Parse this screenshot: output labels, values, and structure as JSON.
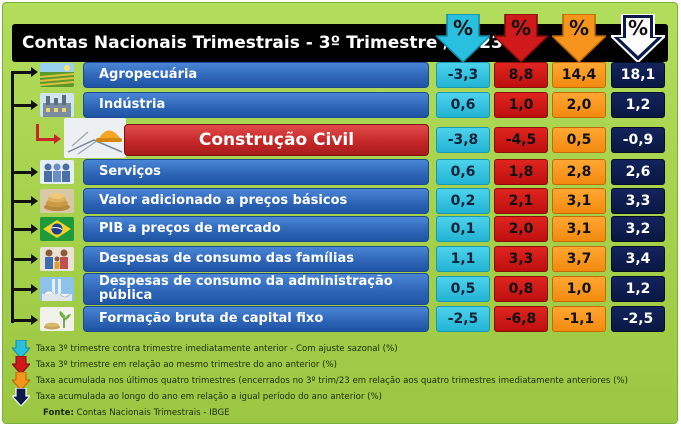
{
  "title": "Contas Nacionais Trimestrais - 3º Trimestre / 2023",
  "header_symbol": "%",
  "colors": {
    "cyan": "#22b4d4",
    "red": "#bd0f0f",
    "orange": "#f28a0f",
    "navy": "#091742",
    "label_blue": "#2f66b8",
    "highlight_red": "#c62828",
    "background_green": "#a4d04a"
  },
  "headers": [
    {
      "color": "cyan",
      "icon": "cyan-percent-arrow-icon"
    },
    {
      "color": "red",
      "icon": "red-percent-arrow-icon"
    },
    {
      "color": "orange",
      "icon": "orange-percent-arrow-icon"
    },
    {
      "color": "navy",
      "icon": "navy-percent-arrow-icon"
    }
  ],
  "rows": [
    {
      "label": "Agropecuária",
      "icon": "agriculture-field-icon",
      "values": [
        "-3,3",
        "8,8",
        "14,4",
        "18,1"
      ]
    },
    {
      "label": "Indústria",
      "icon": "factory-icon",
      "values": [
        "0,6",
        "1,0",
        "2,0",
        "1,2"
      ]
    },
    {
      "label": "Construção Civil",
      "icon": "construction-helmet-icon",
      "highlight": true,
      "values": [
        "-3,8",
        "-4,5",
        "0,5",
        "-0,9"
      ]
    },
    {
      "label": "Serviços",
      "icon": "services-people-icon",
      "values": [
        "0,6",
        "1,8",
        "2,8",
        "2,6"
      ]
    },
    {
      "label": "Valor adicionado a preços básicos",
      "icon": "coins-icon",
      "values": [
        "0,2",
        "2,1",
        "3,1",
        "3,3"
      ]
    },
    {
      "label": "PIB a preços de mercado",
      "icon": "brazil-flag-icon",
      "values": [
        "0,1",
        "2,0",
        "3,1",
        "3,2"
      ]
    },
    {
      "label": "Despesas de consumo das famílias",
      "icon": "family-icon",
      "values": [
        "1,1",
        "3,3",
        "3,7",
        "3,4"
      ]
    },
    {
      "label": "Despesas de consumo da administração pública",
      "icon": "government-building-icon",
      "values": [
        "0,5",
        "0,8",
        "1,0",
        "1,2"
      ]
    },
    {
      "label": "Formação bruta de capital fixo",
      "icon": "capital-growth-icon",
      "values": [
        "-2,5",
        "-6,8",
        "-1,1",
        "-2,5"
      ]
    }
  ],
  "legend": [
    {
      "icon": "cyan-arrow-icon",
      "text": "Taxa  3º trimestre contra trimestre imediatamente anterior - Com ajuste sazonal (%)"
    },
    {
      "icon": "red-arrow-icon",
      "text": "Taxa 3º trimestre em relação ao mesmo trimestre do ano anterior (%)"
    },
    {
      "icon": "orange-arrow-icon",
      "text": "Taxa acumulada nos últimos quatro trimestres (encerrados no 3º trim/23 em relação aos quatro trimestres imediatamente anteriores  (%)"
    },
    {
      "icon": "navy-arrow-icon",
      "text": "Taxa acumulada ao longo do ano em relação a igual período do ano anterior (%)"
    }
  ],
  "source": {
    "label": "Fonte:",
    "text": " Contas Nacionais Trimestrais - IBGE"
  }
}
